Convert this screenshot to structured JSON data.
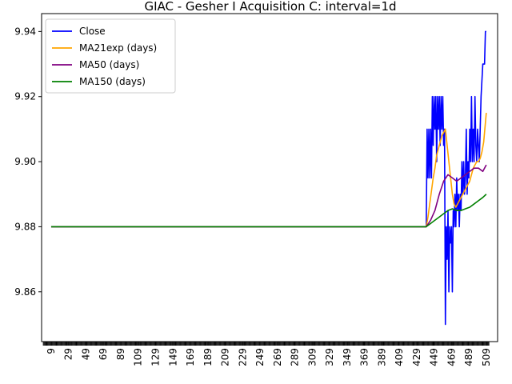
{
  "chart_data": {
    "type": "line",
    "title": "GIAC - Gesher I Acquisition C: interval=1d",
    "xlabel": "",
    "ylabel": "",
    "xlim": [
      -2,
      522
    ],
    "ylim": [
      9.8447,
      9.9455
    ],
    "x_ticks": [
      9,
      29,
      49,
      69,
      89,
      109,
      129,
      149,
      169,
      189,
      209,
      229,
      249,
      269,
      289,
      309,
      329,
      349,
      369,
      389,
      409,
      429,
      449,
      469,
      489,
      509
    ],
    "x_tick_labels": [
      "9",
      "29",
      "49",
      "69",
      "89",
      "109",
      "129",
      "149",
      "169",
      "189",
      "209",
      "229",
      "249",
      "269",
      "289",
      "309",
      "329",
      "349",
      "369",
      "389",
      "409",
      "429",
      "449",
      "469",
      "489",
      "509"
    ],
    "y_ticks": [
      9.86,
      9.88,
      9.9,
      9.92,
      9.94
    ],
    "y_tick_labels": [
      "9.86",
      "9.88",
      "9.90",
      "9.92",
      "9.94"
    ],
    "grid": false,
    "legend_position": "top-left",
    "series": [
      {
        "name": "Close",
        "color": "#0000ff",
        "x": [
          9,
          440,
          441,
          442,
          443,
          444,
          445,
          446,
          447,
          448,
          449,
          450,
          451,
          452,
          453,
          454,
          455,
          456,
          457,
          458,
          459,
          460,
          461,
          462,
          463,
          464,
          465,
          466,
          467,
          468,
          469,
          470,
          471,
          472,
          473,
          474,
          475,
          476,
          477,
          478,
          479,
          480,
          481,
          482,
          483,
          484,
          485,
          486,
          487,
          488,
          489,
          490,
          491,
          492,
          493,
          494,
          495,
          496,
          497,
          498,
          499,
          500,
          501,
          502,
          503,
          504,
          505,
          506,
          507,
          508,
          509
        ],
        "y": [
          9.88,
          9.88,
          9.91,
          9.895,
          9.91,
          9.895,
          9.91,
          9.895,
          9.92,
          9.905,
          9.92,
          9.91,
          9.92,
          9.9,
          9.92,
          9.91,
          9.92,
          9.905,
          9.92,
          9.91,
          9.92,
          9.905,
          9.91,
          9.85,
          9.88,
          9.87,
          9.885,
          9.86,
          9.88,
          9.875,
          9.88,
          9.86,
          9.885,
          9.88,
          9.89,
          9.88,
          9.895,
          9.885,
          9.89,
          9.88,
          9.89,
          9.885,
          9.9,
          9.89,
          9.9,
          9.89,
          9.895,
          9.91,
          9.89,
          9.9,
          9.895,
          9.91,
          9.9,
          9.92,
          9.9,
          9.91,
          9.9,
          9.92,
          9.905,
          9.9,
          9.91,
          9.905,
          9.9,
          9.91,
          9.92,
          9.925,
          9.93,
          9.93,
          9.93,
          9.94,
          9.94
        ]
      },
      {
        "name": "MA21exp (days)",
        "color": "#ffa500",
        "x": [
          9,
          440,
          442,
          444,
          446,
          448,
          450,
          452,
          454,
          456,
          458,
          460,
          462,
          464,
          466,
          468,
          470,
          472,
          474,
          476,
          478,
          480,
          482,
          484,
          486,
          488,
          490,
          492,
          494,
          496,
          498,
          500,
          502,
          504,
          506,
          508,
          509
        ],
        "y": [
          9.88,
          9.88,
          9.883,
          9.887,
          9.891,
          9.895,
          9.898,
          9.902,
          9.904,
          9.906,
          9.908,
          9.909,
          9.91,
          9.905,
          9.9,
          9.895,
          9.89,
          9.887,
          9.886,
          9.887,
          9.888,
          9.889,
          9.89,
          9.891,
          9.892,
          9.893,
          9.894,
          9.896,
          9.898,
          9.899,
          9.9,
          9.9,
          9.901,
          9.903,
          9.906,
          9.912,
          9.915
        ]
      },
      {
        "name": "MA50 (days)",
        "color": "#800080",
        "x": [
          9,
          440,
          445,
          450,
          455,
          460,
          465,
          470,
          475,
          480,
          485,
          490,
          495,
          500,
          505,
          509
        ],
        "y": [
          9.88,
          9.88,
          9.882,
          9.885,
          9.89,
          9.894,
          9.896,
          9.895,
          9.894,
          9.895,
          9.896,
          9.897,
          9.898,
          9.898,
          9.897,
          9.899
        ]
      },
      {
        "name": "MA150 (days)",
        "color": "#008000",
        "x": [
          9,
          440,
          445,
          450,
          455,
          460,
          465,
          470,
          475,
          480,
          485,
          490,
          495,
          500,
          505,
          509
        ],
        "y": [
          9.88,
          9.88,
          9.881,
          9.882,
          9.883,
          9.884,
          9.885,
          9.8855,
          9.885,
          9.885,
          9.8855,
          9.886,
          9.887,
          9.888,
          9.889,
          9.89
        ]
      }
    ]
  }
}
